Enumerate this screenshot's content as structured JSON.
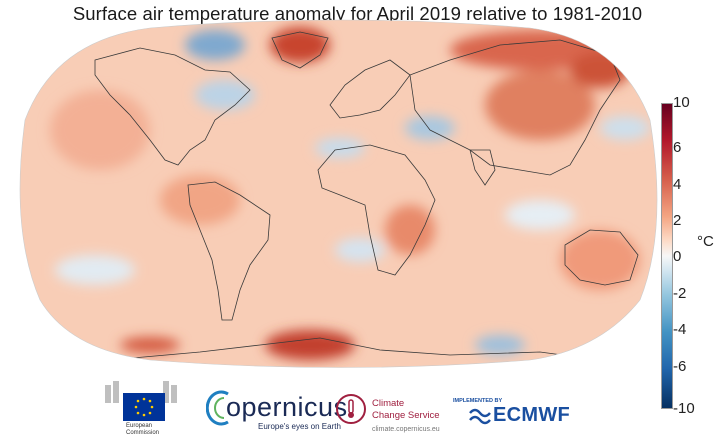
{
  "title": "Surface air temperature anomaly for April 2019 relative to 1981-2010",
  "colorbar": {
    "unit": "°C",
    "ticks": [
      "10",
      "6",
      "4",
      "2",
      "0",
      "-2",
      "-4",
      "-6",
      "-10"
    ]
  },
  "logos": {
    "ec_line1": "European",
    "ec_line2": "Commission",
    "copernicus_name": "opernicus",
    "copernicus_tagline": "Europe's eyes on Earth",
    "c3s_line1": "Climate",
    "c3s_line2": "Change Service",
    "c3s_url": "climate.copernicus.eu",
    "ecmwf_implemented": "IMPLEMENTED BY",
    "ecmwf_name": "ECMWF"
  },
  "colors": {
    "warm_max": "#67001f",
    "warm": "#d6604d",
    "neutral": "#f7f7f7",
    "cool": "#4393c3",
    "cool_max": "#053061",
    "ocean_background": "#f9d2bf"
  }
}
